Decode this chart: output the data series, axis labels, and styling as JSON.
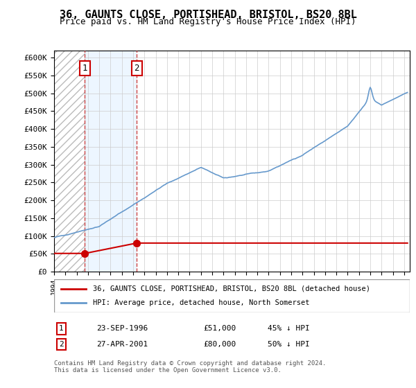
{
  "title": "36, GAUNTS CLOSE, PORTISHEAD, BRISTOL, BS20 8BL",
  "subtitle": "Price paid vs. HM Land Registry's House Price Index (HPI)",
  "ylim": [
    0,
    620000
  ],
  "yticks": [
    0,
    50000,
    100000,
    150000,
    200000,
    250000,
    300000,
    350000,
    400000,
    450000,
    500000,
    550000,
    600000
  ],
  "ytick_labels": [
    "£0",
    "£50K",
    "£100K",
    "£150K",
    "£200K",
    "£250K",
    "£300K",
    "£350K",
    "£400K",
    "£450K",
    "£500K",
    "£550K",
    "£600K"
  ],
  "xlim_start": 1994.0,
  "xlim_end": 2025.5,
  "sale1_date": 1996.73,
  "sale1_price": 51000,
  "sale2_date": 2001.32,
  "sale2_price": 80000,
  "hpi_color": "#6699cc",
  "price_color": "#cc0000",
  "vline_color": "#cc4444",
  "shade_color": "#ddeeff",
  "legend_label_price": "36, GAUNTS CLOSE, PORTISHEAD, BRISTOL, BS20 8BL (detached house)",
  "legend_label_hpi": "HPI: Average price, detached house, North Somerset",
  "table_row1": [
    "1",
    "23-SEP-1996",
    "£51,000",
    "45% ↓ HPI"
  ],
  "table_row2": [
    "2",
    "27-APR-2001",
    "£80,000",
    "50% ↓ HPI"
  ],
  "footnote": "Contains HM Land Registry data © Crown copyright and database right 2024.\nThis data is licensed under the Open Government Licence v3.0."
}
